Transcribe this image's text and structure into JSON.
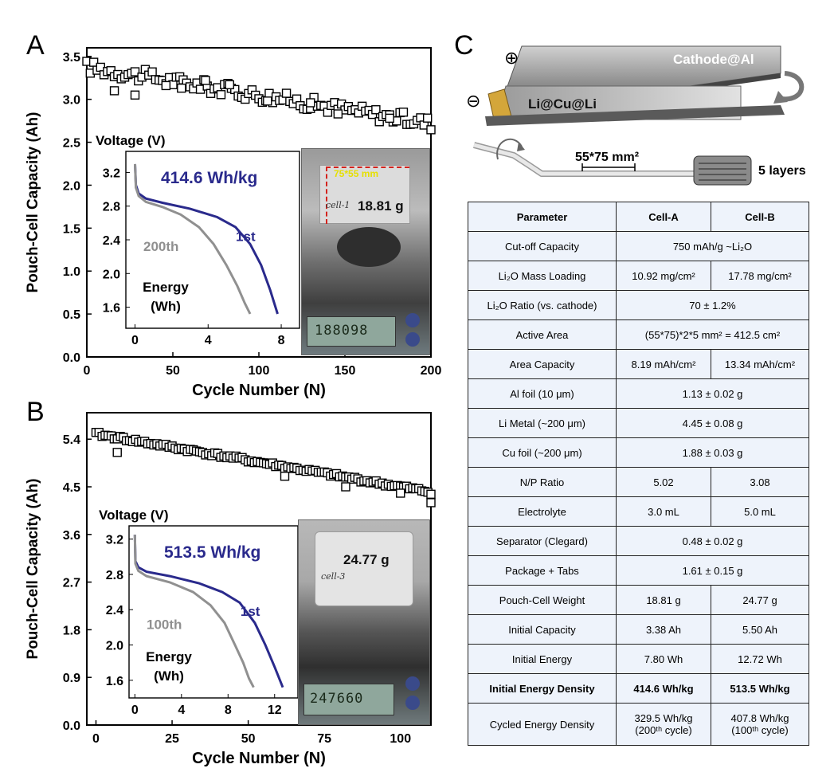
{
  "panel_letters": {
    "a": "A",
    "b": "B",
    "c": "C"
  },
  "colors": {
    "first_cycle": "#2a2a8c",
    "later_cycle": "#909090",
    "photo_bg": "#8a8a8a",
    "table_bg": "#eef3fb"
  },
  "chart_data": [
    {
      "id": "A",
      "type": "scatter",
      "xlabel": "Cycle Number (N)",
      "ylabel": "Pouch-Cell Capacity (Ah)",
      "xlim": [
        0,
        200
      ],
      "ylim": [
        0,
        3.6
      ],
      "xticks": [
        0,
        50,
        100,
        150,
        200
      ],
      "yticks": [
        0.0,
        0.5,
        1.0,
        1.5,
        2.0,
        2.5,
        3.0,
        3.5
      ],
      "ytick_labels": [
        "0.0",
        "0.5",
        "1.0",
        "1.5",
        "2.0",
        "2.5",
        "3.0",
        "3.5"
      ],
      "marker": "open-square",
      "trend": {
        "start": 3.38,
        "end": 2.72
      },
      "dips": [
        [
          16,
          3.1
        ],
        [
          28,
          3.05
        ],
        [
          46,
          3.16
        ],
        [
          55,
          3.13
        ],
        [
          69,
          3.22
        ],
        [
          83,
          3.17
        ],
        [
          105,
          2.98
        ],
        [
          130,
          2.96
        ],
        [
          146,
          2.83
        ],
        [
          176,
          2.78
        ]
      ],
      "inset": {
        "type": "line",
        "ylabel": "Voltage (V)",
        "xlabel_line1": "Energy",
        "xlabel_line2": "(Wh)",
        "xlim": [
          -0.5,
          9
        ],
        "ylim": [
          1.35,
          3.45
        ],
        "xticks": [
          0,
          4,
          8
        ],
        "yticks": [
          1.6,
          2.0,
          2.4,
          2.8,
          3.2
        ],
        "annotation": "414.6 Wh/kg",
        "series": [
          {
            "name": "1st",
            "x": [
              0,
              0.05,
              0.2,
              0.6,
              1.5,
              3.0,
              4.5,
              5.5,
              6.3,
              6.9,
              7.4,
              7.8
            ],
            "y": [
              3.3,
              3.05,
              2.95,
              2.89,
              2.84,
              2.77,
              2.67,
              2.55,
              2.35,
              2.1,
              1.8,
              1.52
            ]
          },
          {
            "name": "200th",
            "x": [
              0,
              0.05,
              0.2,
              0.6,
              1.5,
              2.5,
              3.5,
              4.3,
              5.0,
              5.6,
              6.0,
              6.3
            ],
            "y": [
              3.3,
              3.02,
              2.92,
              2.85,
              2.79,
              2.7,
              2.55,
              2.35,
              2.1,
              1.85,
              1.65,
              1.52
            ]
          }
        ]
      },
      "photo": {
        "weight": "18.81 g",
        "dimension": "75*55 mm",
        "label": "cell-1",
        "readout": "188098"
      }
    },
    {
      "id": "B",
      "type": "scatter",
      "xlabel": "Cycle Number (N)",
      "ylabel": "Pouch-Cell Capacity (Ah)",
      "xlim": [
        -3,
        110
      ],
      "ylim": [
        0,
        5.9
      ],
      "xticks": [
        0,
        25,
        50,
        75,
        100
      ],
      "yticks": [
        0.0,
        0.9,
        1.8,
        2.7,
        3.6,
        4.5,
        5.4
      ],
      "ytick_labels": [
        "0.0",
        "0.9",
        "1.8",
        "2.7",
        "3.6",
        "4.5",
        "5.4"
      ],
      "marker": "open-square",
      "trend": {
        "start": 5.5,
        "end": 4.4
      },
      "dips": [
        [
          7,
          5.15
        ],
        [
          62,
          4.7
        ],
        [
          82,
          4.5
        ],
        [
          100,
          4.38
        ],
        [
          110,
          4.2
        ]
      ],
      "inset": {
        "type": "line",
        "ylabel": "Voltage (V)",
        "xlabel_line1": "Energy",
        "xlabel_line2": "(Wh)",
        "xlim": [
          -0.5,
          14
        ],
        "ylim": [
          1.4,
          3.35
        ],
        "xticks": [
          0,
          4,
          8,
          12
        ],
        "yticks": [
          1.6,
          2.0,
          2.4,
          2.8,
          3.2
        ],
        "annotation": "513.5 Wh/kg",
        "series": [
          {
            "name": "1st",
            "x": [
              0,
              0.05,
              0.3,
              1.0,
              3.0,
              5.5,
              7.5,
              9.0,
              10.3,
              11.2,
              12.0,
              12.7
            ],
            "y": [
              3.25,
              2.95,
              2.88,
              2.83,
              2.78,
              2.7,
              2.6,
              2.48,
              2.25,
              2.0,
              1.75,
              1.52
            ]
          },
          {
            "name": "100th",
            "x": [
              0,
              0.05,
              0.3,
              1.0,
              3.0,
              5.0,
              6.5,
              7.7,
              8.6,
              9.3,
              9.8,
              10.2
            ],
            "y": [
              3.25,
              2.92,
              2.84,
              2.78,
              2.71,
              2.6,
              2.45,
              2.25,
              2.0,
              1.8,
              1.62,
              1.52
            ]
          }
        ]
      },
      "photo": {
        "weight": "24.77 g",
        "label": "cell-3",
        "readout": "247660"
      }
    }
  ],
  "schematic": {
    "cathode_label": "Cathode@Al",
    "anode_label": "Li@Cu@Li",
    "plus_symbol": "⊕",
    "minus_symbol": "⊖",
    "dimension_label": "55*75 mm²",
    "layers_label": "5 layers"
  },
  "table": {
    "headers": [
      "Parameter",
      "Cell-A",
      "Cell-B"
    ],
    "rows": [
      {
        "param": "Cut-off Capacity",
        "merged": "750 mAh/g ~Li₂O"
      },
      {
        "param": "Li₂O Mass Loading",
        "a": "10.92 mg/cm²",
        "b": "17.78 mg/cm²"
      },
      {
        "param": "Li₂O Ratio (vs. cathode)",
        "merged": "70 ± 1.2%"
      },
      {
        "param": "Active Area",
        "merged": "(55*75)*2*5 mm² = 412.5 cm²"
      },
      {
        "param": "Area Capacity",
        "a": "8.19 mAh/cm²",
        "b": "13.34 mAh/cm²"
      },
      {
        "param": "Al foil (10 μm)",
        "merged": "1.13 ± 0.02 g"
      },
      {
        "param": "Li Metal (~200 μm)",
        "merged": "4.45 ± 0.08 g"
      },
      {
        "param": "Cu foil (~200 μm)",
        "merged": "1.88 ± 0.03 g"
      },
      {
        "param": "N/P Ratio",
        "a": "5.02",
        "b": "3.08"
      },
      {
        "param": "Electrolyte",
        "a": "3.0 mL",
        "b": "5.0 mL"
      },
      {
        "param": "Separator (Clegard)",
        "merged": "0.48 ± 0.02 g"
      },
      {
        "param": "Package + Tabs",
        "merged": "1.61 ± 0.15 g"
      },
      {
        "param": "Pouch-Cell Weight",
        "a": "18.81 g",
        "b": "24.77 g"
      },
      {
        "param": "Initial Capacity",
        "a": "3.38 Ah",
        "b": "5.50 Ah"
      },
      {
        "param": "Initial Energy",
        "a": "7.80 Wh",
        "b": "12.72 Wh"
      },
      {
        "param": "Initial Energy Density",
        "a": "414.6 Wh/kg",
        "b": "513.5 Wh/kg",
        "bold": true
      },
      {
        "param": "Cycled Energy Density",
        "a_line1": "329.5 Wh/kg",
        "a_line2": "(200ᵗʰ cycle)",
        "b_line1": "407.8 Wh/kg",
        "b_line2": "(100ᵗʰ cycle)"
      }
    ]
  }
}
